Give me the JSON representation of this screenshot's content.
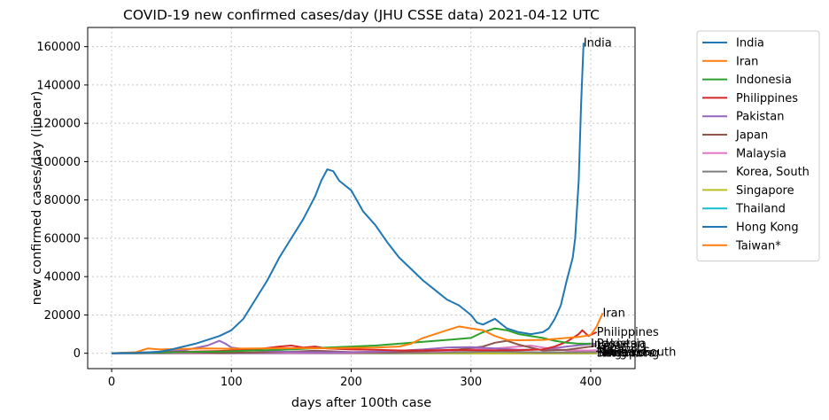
{
  "chart_data": {
    "type": "line",
    "title": "COVID-19 new confirmed cases/day (JHU CSSE data) 2021-04-12 UTC",
    "xlabel": "days after 100th case",
    "ylabel": "new confirmed cases/day (linear)",
    "xlim": [
      -20,
      437
    ],
    "ylim": [
      -8000,
      170000
    ],
    "xticks": [
      0,
      100,
      200,
      300,
      400
    ],
    "yticks": [
      0,
      20000,
      40000,
      60000,
      80000,
      100000,
      120000,
      140000,
      160000
    ],
    "grid": true,
    "legend_position": "outside-right",
    "series": [
      {
        "name": "India",
        "color": "#1f77b4",
        "end_label": "India",
        "points": [
          [
            0,
            0
          ],
          [
            20,
            200
          ],
          [
            40,
            800
          ],
          [
            50,
            2000
          ],
          [
            60,
            3500
          ],
          [
            70,
            5000
          ],
          [
            80,
            7000
          ],
          [
            90,
            9000
          ],
          [
            100,
            12000
          ],
          [
            110,
            18000
          ],
          [
            120,
            28000
          ],
          [
            130,
            38000
          ],
          [
            140,
            50000
          ],
          [
            150,
            60000
          ],
          [
            160,
            70000
          ],
          [
            170,
            82000
          ],
          [
            175,
            90000
          ],
          [
            180,
            96000
          ],
          [
            185,
            95000
          ],
          [
            190,
            90000
          ],
          [
            200,
            85000
          ],
          [
            210,
            74000
          ],
          [
            220,
            67000
          ],
          [
            230,
            58000
          ],
          [
            240,
            50000
          ],
          [
            250,
            44000
          ],
          [
            260,
            38000
          ],
          [
            270,
            33000
          ],
          [
            280,
            28000
          ],
          [
            290,
            25000
          ],
          [
            300,
            20000
          ],
          [
            305,
            16000
          ],
          [
            310,
            15000
          ],
          [
            320,
            18000
          ],
          [
            330,
            13000
          ],
          [
            340,
            11000
          ],
          [
            350,
            10000
          ],
          [
            360,
            11000
          ],
          [
            365,
            13000
          ],
          [
            370,
            18000
          ],
          [
            375,
            25000
          ],
          [
            380,
            38000
          ],
          [
            385,
            50000
          ],
          [
            387,
            60000
          ],
          [
            390,
            90000
          ],
          [
            392,
            130000
          ],
          [
            394,
            162000
          ]
        ]
      },
      {
        "name": "Iran",
        "color": "#ff7f0e",
        "end_label": "Iran",
        "points": [
          [
            0,
            0
          ],
          [
            20,
            500
          ],
          [
            30,
            2500
          ],
          [
            40,
            2000
          ],
          [
            60,
            2300
          ],
          [
            80,
            2500
          ],
          [
            100,
            2400
          ],
          [
            120,
            2500
          ],
          [
            140,
            2600
          ],
          [
            160,
            2700
          ],
          [
            180,
            2600
          ],
          [
            200,
            2800
          ],
          [
            220,
            3000
          ],
          [
            240,
            3500
          ],
          [
            250,
            5000
          ],
          [
            260,
            8000
          ],
          [
            270,
            10000
          ],
          [
            280,
            12000
          ],
          [
            290,
            14000
          ],
          [
            300,
            13000
          ],
          [
            310,
            12000
          ],
          [
            320,
            9000
          ],
          [
            330,
            7000
          ],
          [
            340,
            6800
          ],
          [
            360,
            7000
          ],
          [
            380,
            8000
          ],
          [
            390,
            8500
          ],
          [
            400,
            9500
          ],
          [
            405,
            14000
          ],
          [
            410,
            21000
          ]
        ]
      },
      {
        "name": "Indonesia",
        "color": "#2ca02c",
        "end_label": "Indonesia",
        "points": [
          [
            0,
            0
          ],
          [
            30,
            300
          ],
          [
            60,
            600
          ],
          [
            90,
            900
          ],
          [
            120,
            1500
          ],
          [
            150,
            2000
          ],
          [
            180,
            3000
          ],
          [
            200,
            3500
          ],
          [
            220,
            4000
          ],
          [
            240,
            5000
          ],
          [
            260,
            6000
          ],
          [
            280,
            7000
          ],
          [
            300,
            8000
          ],
          [
            310,
            11000
          ],
          [
            320,
            13000
          ],
          [
            330,
            12000
          ],
          [
            340,
            10000
          ],
          [
            350,
            9000
          ],
          [
            360,
            8000
          ],
          [
            370,
            6500
          ],
          [
            380,
            5500
          ],
          [
            390,
            5000
          ],
          [
            400,
            5000
          ]
        ]
      },
      {
        "name": "Philippines",
        "color": "#d62728",
        "end_label": "Philippines",
        "points": [
          [
            0,
            0
          ],
          [
            30,
            300
          ],
          [
            60,
            800
          ],
          [
            90,
            1200
          ],
          [
            120,
            2000
          ],
          [
            140,
            3500
          ],
          [
            150,
            4000
          ],
          [
            160,
            3000
          ],
          [
            170,
            3500
          ],
          [
            180,
            2500
          ],
          [
            200,
            2000
          ],
          [
            220,
            1800
          ],
          [
            240,
            1500
          ],
          [
            260,
            1500
          ],
          [
            280,
            1700
          ],
          [
            300,
            1600
          ],
          [
            320,
            1500
          ],
          [
            340,
            1600
          ],
          [
            360,
            2000
          ],
          [
            370,
            3500
          ],
          [
            380,
            6000
          ],
          [
            390,
            10000
          ],
          [
            393,
            12000
          ],
          [
            398,
            9000
          ],
          [
            405,
            11000
          ]
        ]
      },
      {
        "name": "Pakistan",
        "color": "#9467bd",
        "end_label": "Pakistan",
        "points": [
          [
            0,
            0
          ],
          [
            30,
            500
          ],
          [
            60,
            1500
          ],
          [
            80,
            4000
          ],
          [
            90,
            6500
          ],
          [
            95,
            5000
          ],
          [
            100,
            3000
          ],
          [
            120,
            1500
          ],
          [
            150,
            700
          ],
          [
            180,
            500
          ],
          [
            200,
            600
          ],
          [
            230,
            1000
          ],
          [
            260,
            2000
          ],
          [
            280,
            3000
          ],
          [
            300,
            3200
          ],
          [
            320,
            2500
          ],
          [
            340,
            1800
          ],
          [
            360,
            2000
          ],
          [
            380,
            3500
          ],
          [
            400,
            4800
          ],
          [
            405,
            5000
          ]
        ]
      },
      {
        "name": "Japan",
        "color": "#8c564b",
        "end_label": "Japan",
        "points": [
          [
            0,
            0
          ],
          [
            30,
            300
          ],
          [
            60,
            600
          ],
          [
            90,
            200
          ],
          [
            120,
            400
          ],
          [
            150,
            800
          ],
          [
            170,
            1400
          ],
          [
            200,
            600
          ],
          [
            230,
            500
          ],
          [
            260,
            1000
          ],
          [
            290,
            2000
          ],
          [
            310,
            3500
          ],
          [
            320,
            5500
          ],
          [
            330,
            6500
          ],
          [
            340,
            4500
          ],
          [
            360,
            1500
          ],
          [
            380,
            1800
          ],
          [
            400,
            3500
          ],
          [
            405,
            4000
          ]
        ]
      },
      {
        "name": "Malaysia",
        "color": "#e377c2",
        "end_label": "Malaysia",
        "points": [
          [
            0,
            0
          ],
          [
            40,
            200
          ],
          [
            80,
            100
          ],
          [
            120,
            100
          ],
          [
            160,
            100
          ],
          [
            200,
            100
          ],
          [
            240,
            500
          ],
          [
            280,
            1200
          ],
          [
            300,
            2000
          ],
          [
            320,
            2500
          ],
          [
            340,
            3500
          ],
          [
            350,
            4000
          ],
          [
            360,
            3000
          ],
          [
            380,
            1500
          ],
          [
            400,
            1500
          ],
          [
            405,
            1600
          ]
        ]
      },
      {
        "name": "Korea, South",
        "color": "#7f7f7f",
        "end_label": "Korea, South",
        "points": [
          [
            0,
            0
          ],
          [
            20,
            500
          ],
          [
            40,
            100
          ],
          [
            80,
            80
          ],
          [
            120,
            100
          ],
          [
            160,
            200
          ],
          [
            180,
            300
          ],
          [
            200,
            200
          ],
          [
            240,
            150
          ],
          [
            280,
            500
          ],
          [
            300,
            700
          ],
          [
            320,
            1000
          ],
          [
            340,
            700
          ],
          [
            360,
            500
          ],
          [
            380,
            500
          ],
          [
            400,
            600
          ],
          [
            410,
            650
          ]
        ]
      },
      {
        "name": "Singapore",
        "color": "#bcbd22",
        "end_label": "Singapore",
        "points": [
          [
            0,
            0
          ],
          [
            40,
            400
          ],
          [
            60,
            800
          ],
          [
            80,
            600
          ],
          [
            100,
            400
          ],
          [
            120,
            200
          ],
          [
            160,
            100
          ],
          [
            200,
            20
          ],
          [
            300,
            15
          ],
          [
            405,
            20
          ]
        ]
      },
      {
        "name": "Thailand",
        "color": "#17becf",
        "end_label": "Thailand",
        "points": [
          [
            0,
            0
          ],
          [
            50,
            100
          ],
          [
            100,
            10
          ],
          [
            200,
            10
          ],
          [
            300,
            10
          ],
          [
            330,
            500
          ],
          [
            350,
            300
          ],
          [
            380,
            100
          ],
          [
            400,
            200
          ],
          [
            405,
            250
          ]
        ]
      },
      {
        "name": "Hong Kong",
        "color": "#1f77b4",
        "end_label": "Hong Kong",
        "points": [
          [
            0,
            0
          ],
          [
            100,
            30
          ],
          [
            140,
            50
          ],
          [
            150,
            100
          ],
          [
            200,
            20
          ],
          [
            250,
            20
          ],
          [
            270,
            100
          ],
          [
            300,
            60
          ],
          [
            350,
            20
          ],
          [
            405,
            15
          ]
        ]
      },
      {
        "name": "Taiwan*",
        "color": "#ff7f0e",
        "end_label": "Taiwan*",
        "points": [
          [
            0,
            0
          ],
          [
            100,
            5
          ],
          [
            200,
            3
          ],
          [
            300,
            5
          ],
          [
            405,
            5
          ]
        ]
      }
    ]
  }
}
